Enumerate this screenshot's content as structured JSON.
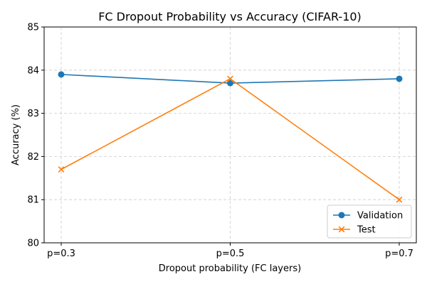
{
  "chart_data": {
    "type": "line",
    "title": "FC Dropout Probability vs Accuracy (CIFAR-10)",
    "xlabel": "Dropout probability (FC layers)",
    "ylabel": "Accuracy (%)",
    "categories": [
      "p=0.3",
      "p=0.5",
      "p=0.7"
    ],
    "ylim": [
      80,
      85
    ],
    "yticks": [
      80,
      81,
      82,
      83,
      84,
      85
    ],
    "grid": true,
    "legend_position": "bottom-right",
    "series": [
      {
        "name": "Validation",
        "values": [
          83.9,
          83.7,
          83.8
        ],
        "color": "#1f77b4",
        "marker": "circle"
      },
      {
        "name": "Test",
        "values": [
          81.7,
          83.8,
          81.0
        ],
        "color": "#ff7f0e",
        "marker": "x"
      }
    ]
  }
}
